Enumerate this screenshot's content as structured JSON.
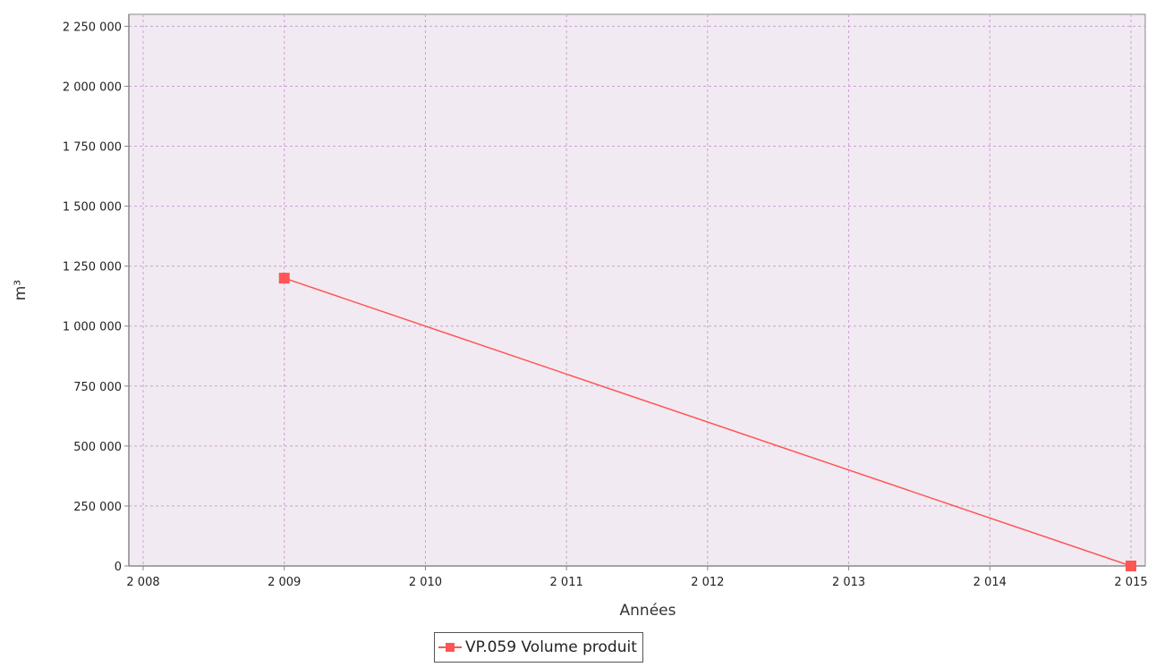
{
  "chart_data": {
    "type": "line",
    "title": "",
    "xlabel": "Années",
    "ylabel": "m³",
    "xlim": [
      2008,
      2015
    ],
    "ylim": [
      0,
      2300000
    ],
    "x_ticks": [
      2008,
      2009,
      2010,
      2011,
      2012,
      2013,
      2014,
      2015
    ],
    "x_tick_labels": [
      "2 008",
      "2 009",
      "2 010",
      "2 011",
      "2 012",
      "2 013",
      "2 014",
      "2 015"
    ],
    "y_ticks": [
      0,
      250000,
      500000,
      750000,
      1000000,
      1250000,
      1500000,
      1750000,
      2000000,
      2250000
    ],
    "y_tick_labels": [
      "0",
      "250 000",
      "500 000",
      "750 000",
      "1 000 000",
      "1 250 000",
      "1 500 000",
      "1 750 000",
      "2 000 000",
      "2 250 000"
    ],
    "grid": true,
    "legend_position": "bottom",
    "series": [
      {
        "name": "VP.059 Volume produit",
        "color": "#ff5555",
        "marker": "square",
        "x": [
          2009,
          2015
        ],
        "y": [
          1200000,
          0
        ]
      }
    ],
    "colors": {
      "plot_background": "#f2eaf2",
      "grid": "#c9a0d4",
      "axis": "#888888"
    }
  }
}
